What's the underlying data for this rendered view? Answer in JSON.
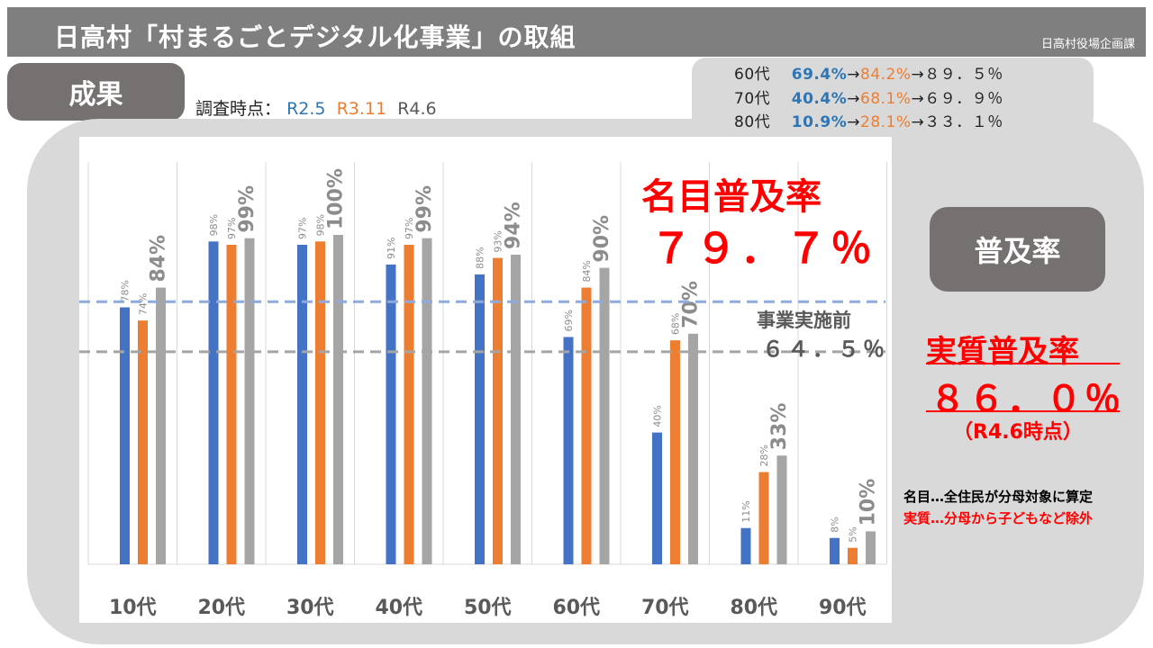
{
  "header": {
    "title": "日高村「村まるごとデジタル化事業」の取組",
    "department": "日高村役場企画課"
  },
  "results_label": "成果",
  "survey": {
    "label": "調査時点：",
    "r1": "R2.5",
    "r2": "R3.11",
    "r3": "R4.6"
  },
  "trends": [
    {
      "age": "60代",
      "a": "69.4%",
      "arrow1": "→",
      "b": "84.2%",
      "arrow2": "→",
      "c": "８９．５％"
    },
    {
      "age": "70代",
      "a": "40.4%",
      "arrow1": "→",
      "b": "68.1%",
      "arrow2": "→",
      "c": "６９．９％"
    },
    {
      "age": "80代",
      "a": "10.9%",
      "arrow1": "→",
      "b": "28.1%",
      "arrow2": "→",
      "c": "３３．１％"
    }
  ],
  "nominal": {
    "title": "名目普及率",
    "value": "７９．７％"
  },
  "before": {
    "label": "事業実施前",
    "value": "６４．５％"
  },
  "fukyu_label": "普及率",
  "real": {
    "title": "実質普及率",
    "value": "８６．０％",
    "when": "（R4.6時点）"
  },
  "notes": {
    "nominal": "名目…全住民が分母対象に算定",
    "real": "実質…分母から子どもなど除外"
  },
  "colors": {
    "r2": "#4472c4",
    "r3": "#ed7d31",
    "r4": "#a5a5a5"
  },
  "chart_data": {
    "type": "bar",
    "categories": [
      "10代",
      "20代",
      "30代",
      "40代",
      "50代",
      "60代",
      "70代",
      "80代",
      "90代"
    ],
    "series": [
      {
        "name": "R2.5",
        "values": [
          78,
          98,
          97,
          91,
          88,
          69,
          40,
          11,
          8
        ],
        "labels": [
          "78%",
          "98%",
          "97%",
          "91%",
          "88%",
          "69%",
          "40%",
          "11%",
          "8%"
        ]
      },
      {
        "name": "R3.11",
        "values": [
          74,
          97,
          98,
          97,
          93,
          84,
          68,
          28,
          5
        ],
        "labels": [
          "74%",
          "97%",
          "98%",
          "97%",
          "93%",
          "84%",
          "68%",
          "28%",
          "5%"
        ]
      },
      {
        "name": "R4.6",
        "values": [
          84,
          99,
          100,
          99,
          94,
          90,
          70,
          33,
          10
        ],
        "labels": [
          "84%",
          "99%",
          "100%",
          "99%",
          "94%",
          "90%",
          "70%",
          "33%",
          "10%"
        ]
      }
    ],
    "ylim": [
      0,
      100
    ],
    "reference_lines": [
      {
        "name": "nominal",
        "value": 79.7
      },
      {
        "name": "before",
        "value": 64.5
      }
    ]
  }
}
